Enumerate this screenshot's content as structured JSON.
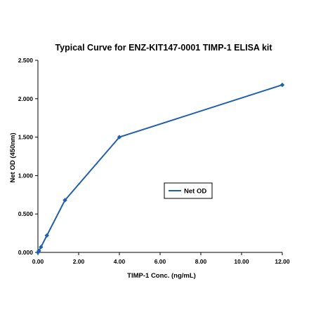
{
  "colors": {
    "series": "#1f5fae",
    "axis": "#000000",
    "background": "#ffffff",
    "legend_border": "#000000"
  },
  "chart_data": {
    "type": "line",
    "title": "Typical Curve for ENZ-KIT147-0001 TIMP-1 ELISA kit",
    "xlabel": "TIMP-1 Conc. (ng/mL)",
    "ylabel": "Net OD (450nm)",
    "xlim": [
      0,
      12
    ],
    "ylim": [
      0,
      2.5
    ],
    "x_ticks": [
      "0.00",
      "2.00",
      "4.00",
      "6.00",
      "8.00",
      "10.00",
      "12.00"
    ],
    "y_ticks": [
      "0.000",
      "0.500",
      "1.000",
      "1.500",
      "2.000",
      "2.500"
    ],
    "grid": false,
    "legend_position": "center-right",
    "series": [
      {
        "name": "Net OD",
        "marker": "diamond",
        "x": [
          0,
          0.05,
          0.15,
          0.44,
          1.33,
          4.0,
          12.0
        ],
        "y": [
          0.0,
          0.02,
          0.07,
          0.22,
          0.68,
          1.5,
          2.18
        ]
      }
    ]
  }
}
